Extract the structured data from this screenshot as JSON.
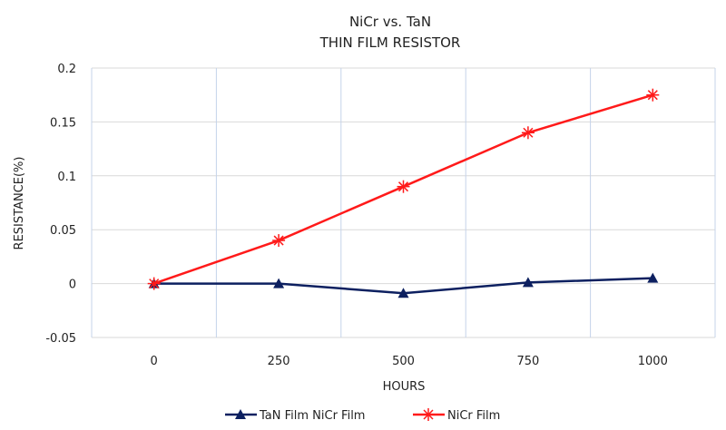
{
  "chart_data": {
    "type": "line",
    "title": "NiCr vs. TaN",
    "subtitle": "THIN FILM RESISTOR",
    "xlabel": "HOURS",
    "ylabel": "RESISTANCE(%)",
    "categories": [
      "0",
      "250",
      "500",
      "750",
      "1000"
    ],
    "ylim": [
      -0.05,
      0.2
    ],
    "yticks": [
      0.2,
      0.15,
      0.1,
      0.05,
      0,
      -0.05
    ],
    "ytick_labels": [
      "0.2",
      "0.15",
      "0.1",
      "0.05",
      "0",
      "-0.05"
    ],
    "grid": true,
    "legend_position": "bottom",
    "series": [
      {
        "name": "TaN Film NiCr Film",
        "values": [
          0,
          0,
          -0.009,
          0.001,
          0.005
        ],
        "color": "#0d2060",
        "marker": "triangle"
      },
      {
        "name": "NiCr Film",
        "values": [
          0,
          0.04,
          0.09,
          0.14,
          0.175
        ],
        "color": "#ff1a1a",
        "marker": "star"
      }
    ]
  }
}
